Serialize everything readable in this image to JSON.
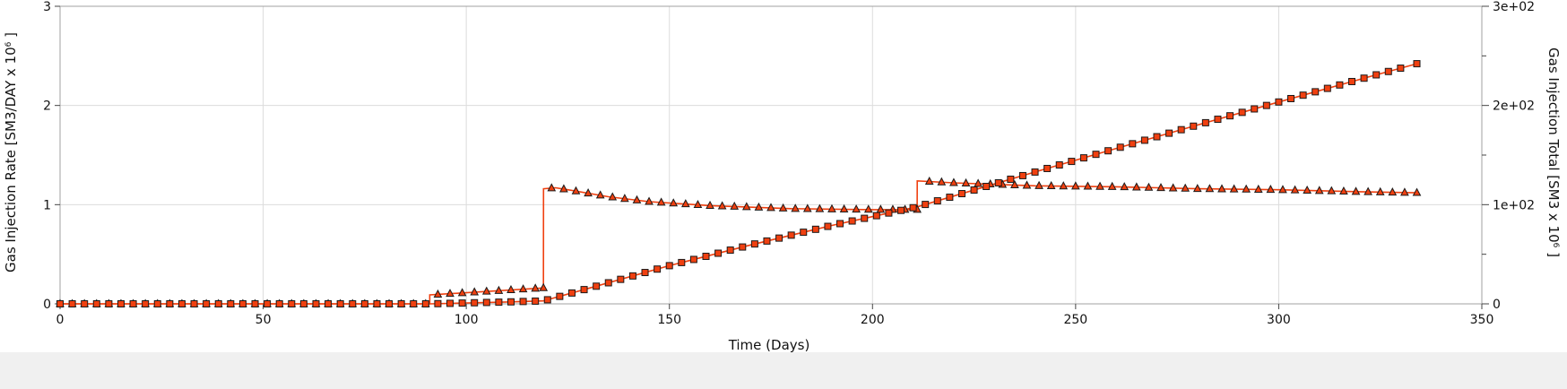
{
  "chart_data": {
    "type": "line",
    "xlabel": "Time (Days)",
    "ylabel_left": "Gas Injection Rate [SM3/DAY x 10",
    "ylabel_left_exp": "6",
    "ylabel_left_tail": " ]",
    "ylabel_right": "Gas Injection Total [SM3 x 10",
    "ylabel_right_exp": "6",
    "ylabel_right_tail": " ]",
    "xlim": [
      0,
      350
    ],
    "ylim_left": [
      0,
      3
    ],
    "ylim_right": [
      0,
      300
    ],
    "x_ticks": [
      0,
      50,
      100,
      150,
      200,
      250,
      300,
      350
    ],
    "x_tick_labels": [
      "0",
      "50",
      "100",
      "150",
      "200",
      "250",
      "300",
      "350"
    ],
    "y_left_ticks": [
      0,
      1,
      2,
      3
    ],
    "y_left_tick_labels": [
      "0",
      "1",
      "2",
      "3"
    ],
    "y_right_ticks": [
      0,
      50,
      100,
      150,
      200,
      250,
      300
    ],
    "y_right_tick_labels": [
      "0",
      "",
      "1e+02",
      "",
      "2e+02",
      "",
      "3e+02"
    ],
    "grid": true,
    "line_color": "#f04010",
    "marker_fill": "#f04010",
    "marker_edge": "#1a1a1a",
    "series": [
      {
        "axis": "left",
        "marker": "triangle",
        "step": true,
        "x": [
          0,
          91,
          91.01,
          119,
          119.01,
          122,
          125,
          135,
          145,
          160,
          180,
          200,
          211,
          211.01,
          220,
          240,
          260,
          280,
          300,
          320,
          334
        ],
        "y": [
          0,
          0,
          0.09,
          0.16,
          1.16,
          1.17,
          1.15,
          1.08,
          1.03,
          0.99,
          0.96,
          0.95,
          0.95,
          1.24,
          1.22,
          1.19,
          1.18,
          1.16,
          1.15,
          1.13,
          1.12
        ],
        "marker_x": [
          0,
          3,
          6,
          9,
          12,
          15,
          18,
          21,
          24,
          27,
          30,
          33,
          36,
          39,
          42,
          45,
          48,
          51,
          54,
          57,
          60,
          63,
          66,
          69,
          72,
          75,
          78,
          81,
          84,
          87,
          90,
          93,
          96,
          99,
          102,
          105,
          108,
          111,
          114,
          117,
          119,
          121,
          124,
          127,
          130,
          133,
          136,
          139,
          142,
          145,
          148,
          151,
          154,
          157,
          160,
          163,
          166,
          169,
          172,
          175,
          178,
          181,
          184,
          187,
          190,
          193,
          196,
          199,
          202,
          205,
          208,
          211,
          214,
          217,
          220,
          223,
          226,
          229,
          232,
          235,
          238,
          241,
          244,
          247,
          250,
          253,
          256,
          259,
          262,
          265,
          268,
          271,
          274,
          277,
          280,
          283,
          286,
          289,
          292,
          295,
          298,
          301,
          304,
          307,
          310,
          313,
          316,
          319,
          322,
          325,
          328,
          331,
          334
        ]
      },
      {
        "axis": "right",
        "marker": "square",
        "step": false,
        "x": [
          0,
          91,
          100,
          110,
          119,
          122,
          130,
          150,
          170,
          190,
          211,
          220,
          240,
          260,
          280,
          300,
          320,
          334
        ],
        "y": [
          0,
          0,
          0.9,
          1.9,
          3.0,
          6.4,
          15.5,
          38.5,
          59.4,
          79.1,
          97.8,
          108.7,
          132.9,
          156.7,
          180.3,
          203.5,
          226.4,
          242.1
        ],
        "marker_x": [
          0,
          3,
          6,
          9,
          12,
          15,
          18,
          21,
          24,
          27,
          30,
          33,
          36,
          39,
          42,
          45,
          48,
          51,
          54,
          57,
          60,
          63,
          66,
          69,
          72,
          75,
          78,
          81,
          84,
          87,
          90,
          93,
          96,
          99,
          102,
          105,
          108,
          111,
          114,
          117,
          120,
          123,
          126,
          129,
          132,
          135,
          138,
          141,
          144,
          147,
          150,
          153,
          156,
          159,
          162,
          165,
          168,
          171,
          174,
          177,
          180,
          183,
          186,
          189,
          192,
          195,
          198,
          201,
          204,
          207,
          210,
          213,
          216,
          219,
          222,
          225,
          228,
          231,
          234,
          237,
          240,
          243,
          246,
          249,
          252,
          255,
          258,
          261,
          264,
          267,
          270,
          273,
          276,
          279,
          282,
          285,
          288,
          291,
          294,
          297,
          300,
          303,
          306,
          309,
          312,
          315,
          318,
          321,
          324,
          327,
          330,
          334
        ]
      }
    ]
  }
}
